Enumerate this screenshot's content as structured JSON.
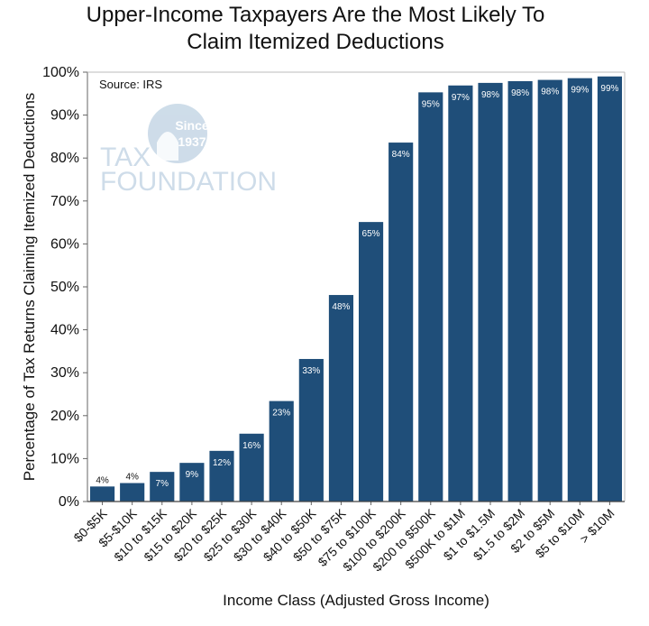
{
  "chart_data": {
    "type": "bar",
    "title_lines": [
      "Upper-Income Taxpayers Are the Most Likely To",
      "Claim Itemized Deductions"
    ],
    "xlabel": "Income Class (Adjusted Gross Income)",
    "ylabel": "Percentage of Tax Returns Claiming Itemized Deductions",
    "ylim": [
      0,
      100
    ],
    "yticks": [
      "0%",
      "10%",
      "20%",
      "30%",
      "40%",
      "50%",
      "60%",
      "70%",
      "80%",
      "90%",
      "100%"
    ],
    "categories": [
      "$0-$5K",
      "$5-$10K",
      "$10 to $15K",
      "$15 to $20K",
      "$20 to $25K",
      "$25 to $30K",
      "$30 to $40K",
      "$40 to $50K",
      "$50 to $75K",
      "$75 to $100K",
      "$100 to $200K",
      "$200 to $500K",
      "$500K to $1M",
      "$1 to $1.5M",
      "$1.5 to $2M",
      "$2 to $5M",
      "$5 to $10M",
      "> $10M"
    ],
    "values": [
      3.5,
      4.3,
      6.9,
      9.0,
      11.8,
      15.8,
      23.4,
      33.2,
      48.1,
      65.1,
      83.6,
      95.3,
      96.9,
      97.5,
      97.9,
      98.2,
      98.6,
      99.0
    ],
    "value_labels": [
      "4%",
      "4%",
      "7%",
      "9%",
      "12%",
      "16%",
      "23%",
      "33%",
      "48%",
      "65%",
      "84%",
      "95%",
      "97%",
      "98%",
      "98%",
      "98%",
      "99%",
      "99%"
    ],
    "source": "Source: IRS",
    "bar_color": "#1f4e79",
    "watermark": {
      "line1": "TAX",
      "line2": "FOUNDATION",
      "since": "Since",
      "year": "1937",
      "color": "#c9d9e7"
    }
  }
}
